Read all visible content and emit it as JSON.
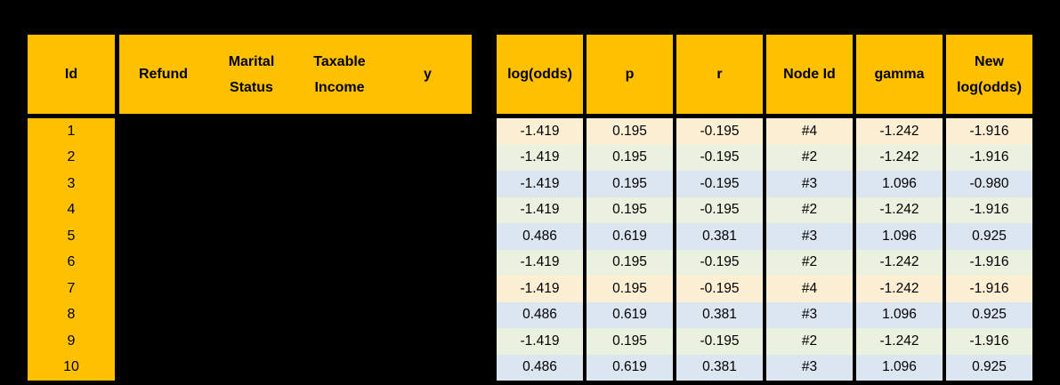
{
  "colors": {
    "header_fill": "#FFC000",
    "row_cream": "#FCEFD4",
    "row_green": "#EAF1DE",
    "row_blue": "#DCE6F1",
    "background": "#000000",
    "text": "#000000"
  },
  "left_table": {
    "headers": [
      "Id",
      "Refund",
      "Marital\nStatus",
      "Taxable\nIncome",
      "y"
    ],
    "ids": [
      "1",
      "2",
      "3",
      "4",
      "5",
      "6",
      "7",
      "8",
      "9",
      "10"
    ]
  },
  "right_table": {
    "headers": [
      "log(odds)",
      "p",
      "r",
      "Node Id",
      "gamma",
      "New\nlog(odds)"
    ],
    "rows": [
      {
        "values": [
          "-1.419",
          "0.195",
          "-0.195",
          "#4",
          "-1.242",
          "-1.916"
        ],
        "fill": "row_cream"
      },
      {
        "values": [
          "-1.419",
          "0.195",
          "-0.195",
          "#2",
          "-1.242",
          "-1.916"
        ],
        "fill": "row_green"
      },
      {
        "values": [
          "-1.419",
          "0.195",
          "-0.195",
          "#3",
          "1.096",
          "-0.980"
        ],
        "fill": "row_blue"
      },
      {
        "values": [
          "-1.419",
          "0.195",
          "-0.195",
          "#2",
          "-1.242",
          "-1.916"
        ],
        "fill": "row_green"
      },
      {
        "values": [
          "0.486",
          "0.619",
          "0.381",
          "#3",
          "1.096",
          "0.925"
        ],
        "fill": "row_blue"
      },
      {
        "values": [
          "-1.419",
          "0.195",
          "-0.195",
          "#2",
          "-1.242",
          "-1.916"
        ],
        "fill": "row_green"
      },
      {
        "values": [
          "-1.419",
          "0.195",
          "-0.195",
          "#4",
          "-1.242",
          "-1.916"
        ],
        "fill": "row_cream"
      },
      {
        "values": [
          "0.486",
          "0.619",
          "0.381",
          "#3",
          "1.096",
          "0.925"
        ],
        "fill": "row_blue"
      },
      {
        "values": [
          "-1.419",
          "0.195",
          "-0.195",
          "#2",
          "-1.242",
          "-1.916"
        ],
        "fill": "row_green"
      },
      {
        "values": [
          "0.486",
          "0.619",
          "0.381",
          "#3",
          "1.096",
          "0.925"
        ],
        "fill": "row_blue"
      }
    ]
  },
  "chart_data": [
    {
      "type": "table",
      "columns": [
        "Id",
        "Refund",
        "Marital Status",
        "Taxable Income",
        "y"
      ],
      "rows": [
        [
          "1",
          "",
          "",
          "",
          ""
        ],
        [
          "2",
          "",
          "",
          "",
          ""
        ],
        [
          "3",
          "",
          "",
          "",
          ""
        ],
        [
          "4",
          "",
          "",
          "",
          ""
        ],
        [
          "5",
          "",
          "",
          "",
          ""
        ],
        [
          "6",
          "",
          "",
          "",
          ""
        ],
        [
          "7",
          "",
          "",
          "",
          ""
        ],
        [
          "8",
          "",
          "",
          "",
          ""
        ],
        [
          "9",
          "",
          "",
          "",
          ""
        ],
        [
          "10",
          "",
          "",
          "",
          ""
        ]
      ],
      "note_visible_in_pixels": "feature and y cells are blacked out; only Id values visible"
    },
    {
      "type": "table",
      "columns": [
        "log(odds)",
        "p",
        "r",
        "Node Id",
        "gamma",
        "New log(odds)"
      ],
      "rows": [
        [
          "-1.419",
          "0.195",
          "-0.195",
          "#4",
          "-1.242",
          "-1.916"
        ],
        [
          "-1.419",
          "0.195",
          "-0.195",
          "#2",
          "-1.242",
          "-1.916"
        ],
        [
          "-1.419",
          "0.195",
          "-0.195",
          "#3",
          "1.096",
          "-0.980"
        ],
        [
          "-1.419",
          "0.195",
          "-0.195",
          "#2",
          "-1.242",
          "-1.916"
        ],
        [
          "0.486",
          "0.619",
          "0.381",
          "#3",
          "1.096",
          "0.925"
        ],
        [
          "-1.419",
          "0.195",
          "-0.195",
          "#2",
          "-1.242",
          "-1.916"
        ],
        [
          "-1.419",
          "0.195",
          "-0.195",
          "#4",
          "-1.242",
          "-1.916"
        ],
        [
          "0.486",
          "0.619",
          "0.381",
          "#3",
          "1.096",
          "0.925"
        ],
        [
          "-1.419",
          "0.195",
          "-0.195",
          "#2",
          "-1.242",
          "-1.916"
        ],
        [
          "0.486",
          "0.619",
          "0.381",
          "#3",
          "1.096",
          "0.925"
        ]
      ],
      "row_fill_by_node": {
        "#4": "cream",
        "#2": "green",
        "#3": "blue"
      }
    }
  ]
}
